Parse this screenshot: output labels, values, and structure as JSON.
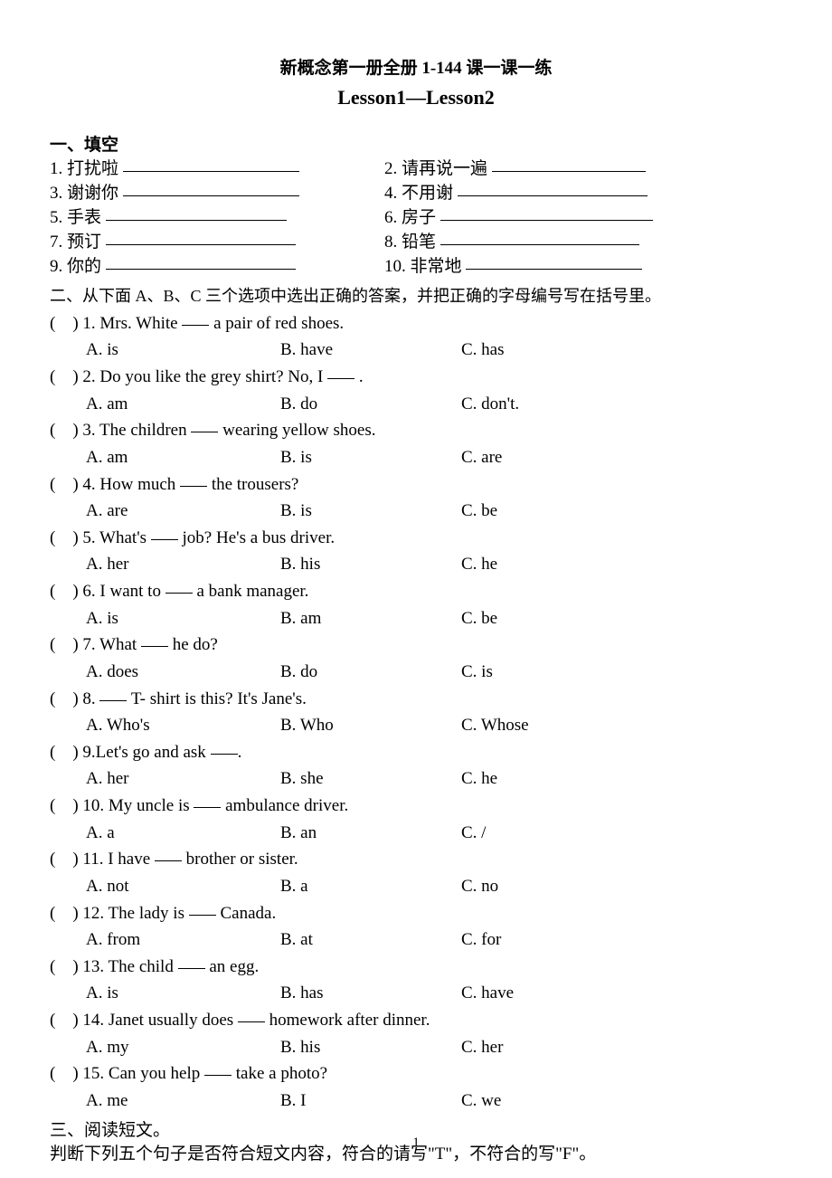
{
  "title_main": "新概念第一册全册 1-144 课一课一练",
  "title_sub": "Lesson1—Lesson2",
  "section1": {
    "heading": "一、填空",
    "items": [
      {
        "n": "1.",
        "label": "打扰啦",
        "blank_w": 195
      },
      {
        "n": "2.",
        "label": "请再说一遍",
        "blank_w": 170
      },
      {
        "n": "3.",
        "label": "谢谢你",
        "blank_w": 195
      },
      {
        "n": "4.",
        "label": "不用谢",
        "blank_w": 210
      },
      {
        "n": "5.",
        "label": "手表",
        "blank_w": 200
      },
      {
        "n": "6.",
        "label": "房子",
        "blank_w": 235
      },
      {
        "n": "7.",
        "label": "预订",
        "blank_w": 210
      },
      {
        "n": "8.",
        "label": "铅笔",
        "blank_w": 220
      },
      {
        "n": "9.",
        "label": "你的",
        "blank_w": 210
      },
      {
        "n": "10.",
        "label": "非常地",
        "blank_w": 195
      }
    ]
  },
  "section2": {
    "heading": "二、从下面 A、B、C 三个选项中选出正确的答案，并把正确的字母编号写在括号里。",
    "questions": [
      {
        "n": "1.",
        "stem_pre": "Mrs. White ",
        "stem_post": " a pair of red shoes.",
        "a": "A. is",
        "b": "B. have",
        "c": "C. has"
      },
      {
        "n": "2.",
        "stem_pre": "Do you like the grey shirt? No, I ",
        "stem_post": " .",
        "a": "A. am",
        "b": "B. do",
        "c": "C. don't."
      },
      {
        "n": "3.",
        "stem_pre": "The children ",
        "stem_post": " wearing yellow shoes.",
        "a": "A. am",
        "b": "B. is",
        "c": "C. are"
      },
      {
        "n": "4.",
        "stem_pre": "How much ",
        "stem_post": " the trousers?",
        "a": "A. are",
        "b": "B. is",
        "c": "C. be"
      },
      {
        "n": "5.",
        "stem_pre": "What's ",
        "stem_post": " job? He's a bus driver.",
        "a": "A. her",
        "b": "B. his",
        "c": " C. he"
      },
      {
        "n": "6.",
        "stem_pre": "I want to ",
        "stem_post": " a bank manager.",
        "a": "A. is",
        "b": "B. am",
        "c": "C. be"
      },
      {
        "n": "7.",
        "stem_pre": "What ",
        "stem_post": " he do?",
        "a": "A. does",
        "b": "B. do",
        "c": "C. is"
      },
      {
        "n": "8.",
        "stem_pre": "",
        "stem_post": " T- shirt is this? It's Jane's.",
        "a": "A. Who's",
        "b": "B. Who",
        "c": "C. Whose"
      },
      {
        "n": "9.",
        "stem_pre": "Let's go and ask ",
        "stem_post": ".",
        "a": "A. her",
        "b": "B. she",
        "c": "C. he",
        "nospace": true
      },
      {
        "n": "10.",
        "stem_pre": "My uncle is ",
        "stem_post": " ambulance driver.",
        "a": "A. a",
        "b": "B. an",
        "c": "C. /"
      },
      {
        "n": "11.",
        "stem_pre": "I have ",
        "stem_post": " brother or sister.",
        "a": "A. not",
        "b": "B. a",
        "c": "C. no"
      },
      {
        "n": "12.",
        "stem_pre": "The lady is ",
        "stem_post": " Canada.",
        "a": "A. from",
        "b": "B. at",
        "c": "C. for"
      },
      {
        "n": "13.",
        "stem_pre": "The child ",
        "stem_post": " an egg.",
        "a": "A. is",
        "b": "B. has",
        "c": "C. have"
      },
      {
        "n": "14.",
        "stem_pre": "Janet usually does ",
        "stem_post": " homework after dinner.",
        "a": "A. my",
        "b": "B. his",
        "c": "C. her"
      },
      {
        "n": "15.",
        "stem_pre": "Can you help ",
        "stem_post": " take a photo?",
        "a": "A. me",
        "b": "B. I",
        "c": "C. we"
      }
    ]
  },
  "section3": {
    "heading": "三、阅读短文。",
    "sub": "判断下列五个句子是否符合短文内容，符合的请写\"T\"，不符合的写\"F\"。"
  },
  "page_number": "1",
  "paren_open": "(",
  "paren_close": ")"
}
